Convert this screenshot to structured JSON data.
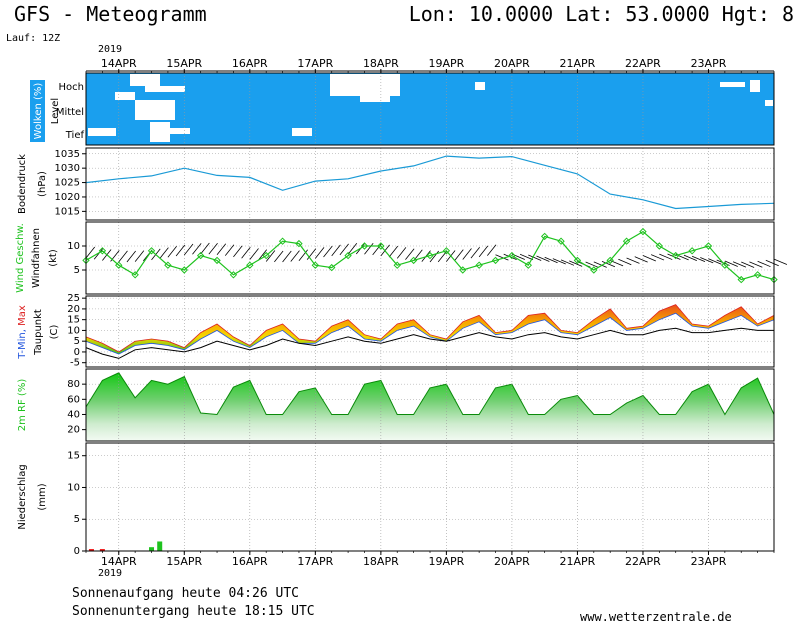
{
  "header": {
    "title_left": "GFS - Meteogramm",
    "title_right": "Lon: 10.0000 Lat: 53.0000 Hgt: 8",
    "run": "Lauf: 12Z",
    "year_top": "2019",
    "year_bottom": "2019"
  },
  "footer": {
    "sunrise": "Sonnenaufgang heute 04:26 UTC",
    "sunset": "Sonnenuntergang heute 18:15 UTC",
    "site": "www.wetterzentrale.de"
  },
  "chart_data": {
    "type": "line",
    "x_unit": "hours since 2019-04-13 12 UTC",
    "date_labels": [
      "14APR",
      "15APR",
      "16APR",
      "17APR",
      "18APR",
      "19APR",
      "20APR",
      "21APR",
      "22APR",
      "23APR"
    ],
    "panels": {
      "clouds": {
        "ylabel": "Wolken (%)",
        "level_label": "Level",
        "levels": [
          "Hoch",
          "Mittel",
          "Tief"
        ],
        "background": "#1a9fee",
        "clear_color": "#ffffff"
      },
      "pressure": {
        "ylabel": "Bodendruck",
        "unit": "(hPa)",
        "ticks": [
          1015,
          1020,
          1025,
          1030,
          1035
        ],
        "color": "#1a9ad6",
        "x": [
          0,
          12,
          24,
          36,
          48,
          60,
          72,
          84,
          96,
          108,
          120,
          132,
          144,
          156,
          168,
          180,
          192,
          204,
          216,
          228,
          240,
          252
        ],
        "values": [
          1025,
          1026.3,
          1027.3,
          1030,
          1027.5,
          1026.8,
          1022.3,
          1025.5,
          1026.3,
          1029,
          1030.8,
          1034.2,
          1033.5,
          1034,
          1031,
          1028,
          1021,
          1019,
          1016,
          1016.7,
          1017.4,
          1017.8
        ]
      },
      "wind": {
        "ylabel1": "Wind Geschw.",
        "ylabel2": "Windfahnen",
        "unit": "(kt)",
        "ticks": [
          5,
          10
        ],
        "color": "#1ec21e",
        "x": [
          0,
          6,
          12,
          18,
          24,
          30,
          36,
          42,
          48,
          54,
          60,
          66,
          72,
          78,
          84,
          90,
          96,
          102,
          108,
          114,
          120,
          126,
          132,
          138,
          144,
          150,
          156,
          162,
          168,
          174,
          180,
          186,
          192,
          198,
          204,
          210,
          216,
          222,
          228,
          234,
          240,
          246,
          252
        ],
        "values": [
          7,
          9,
          6,
          4,
          9,
          6,
          5,
          8,
          7,
          4,
          6,
          8,
          11,
          10.5,
          6,
          5.5,
          8,
          10,
          10,
          6,
          7,
          8,
          9,
          5,
          6,
          7,
          8,
          6,
          12,
          11,
          7,
          5,
          7,
          11,
          13,
          10,
          8,
          9,
          10,
          6,
          3,
          4,
          3
        ]
      },
      "temp": {
        "ylabel1": "T-Min, Max",
        "ylabel2": "Taupunkt",
        "unit": "(C)",
        "ticks": [
          -5,
          0,
          5,
          10,
          15,
          20,
          25
        ],
        "tmin_color": "#2255dd",
        "tmax_color": "#dd2222",
        "dew_color": "#000000",
        "x": [
          0,
          6,
          12,
          18,
          24,
          30,
          36,
          42,
          48,
          54,
          60,
          66,
          72,
          78,
          84,
          90,
          96,
          102,
          108,
          114,
          120,
          126,
          132,
          138,
          144,
          150,
          156,
          162,
          168,
          174,
          180,
          186,
          192,
          198,
          204,
          210,
          216,
          222,
          228,
          234,
          240,
          246,
          252
        ],
        "t_max": [
          7,
          4,
          0,
          5,
          6,
          5,
          2,
          9,
          13,
          7,
          3,
          10,
          13,
          6,
          5,
          12,
          15,
          8,
          6,
          13,
          15,
          8,
          6,
          14,
          17,
          9,
          10,
          17,
          18,
          10,
          9,
          15,
          20,
          11,
          12,
          19,
          22,
          13,
          12,
          17,
          21,
          13,
          17
        ],
        "t_min": [
          5,
          2,
          -1,
          3,
          4,
          3,
          1,
          6,
          10,
          5,
          2,
          7,
          10,
          4,
          4,
          9,
          12,
          6,
          5,
          10,
          12,
          7,
          5,
          11,
          14,
          8,
          9,
          13,
          15,
          9,
          8,
          12,
          16,
          10,
          11,
          15,
          18,
          12,
          11,
          14,
          17,
          12,
          15
        ],
        "dewpoint": [
          2,
          -1,
          -3,
          1,
          2,
          1,
          0,
          2,
          5,
          3,
          1,
          3,
          6,
          4,
          3,
          5,
          7,
          5,
          4,
          6,
          8,
          6,
          5,
          7,
          9,
          7,
          6,
          8,
          9,
          7,
          6,
          8,
          10,
          8,
          8,
          10,
          11,
          9,
          9,
          10,
          11,
          10,
          10
        ]
      },
      "humidity": {
        "ylabel": "2m RF (%)",
        "ticks": [
          20,
          40,
          60,
          80
        ],
        "color": "#1ec21e",
        "x": [
          0,
          6,
          12,
          18,
          24,
          30,
          36,
          42,
          48,
          54,
          60,
          66,
          72,
          78,
          84,
          90,
          96,
          102,
          108,
          114,
          120,
          126,
          132,
          138,
          144,
          150,
          156,
          162,
          168,
          174,
          180,
          186,
          192,
          198,
          204,
          210,
          216,
          222,
          228,
          234,
          240,
          246,
          252
        ],
        "values": [
          50,
          85,
          95,
          62,
          85,
          80,
          90,
          42,
          40,
          76,
          85,
          40,
          40,
          70,
          75,
          40,
          40,
          80,
          85,
          40,
          40,
          75,
          80,
          40,
          40,
          75,
          80,
          40,
          40,
          60,
          65,
          40,
          40,
          55,
          65,
          40,
          40,
          70,
          80,
          40,
          75,
          88,
          40
        ]
      },
      "precip": {
        "ylabel": "Niederschlag",
        "unit": "(mm)",
        "ticks": [
          0,
          5,
          10,
          15
        ],
        "bar_color": "#1ec21e",
        "red_color": "#e11",
        "bars": [
          {
            "x": 2,
            "value": 0.3,
            "color": "red"
          },
          {
            "x": 6,
            "value": 0.3,
            "color": "red"
          },
          {
            "x": 24,
            "value": 0.6,
            "color": "green"
          },
          {
            "x": 27,
            "value": 1.5,
            "color": "green"
          }
        ]
      }
    }
  }
}
